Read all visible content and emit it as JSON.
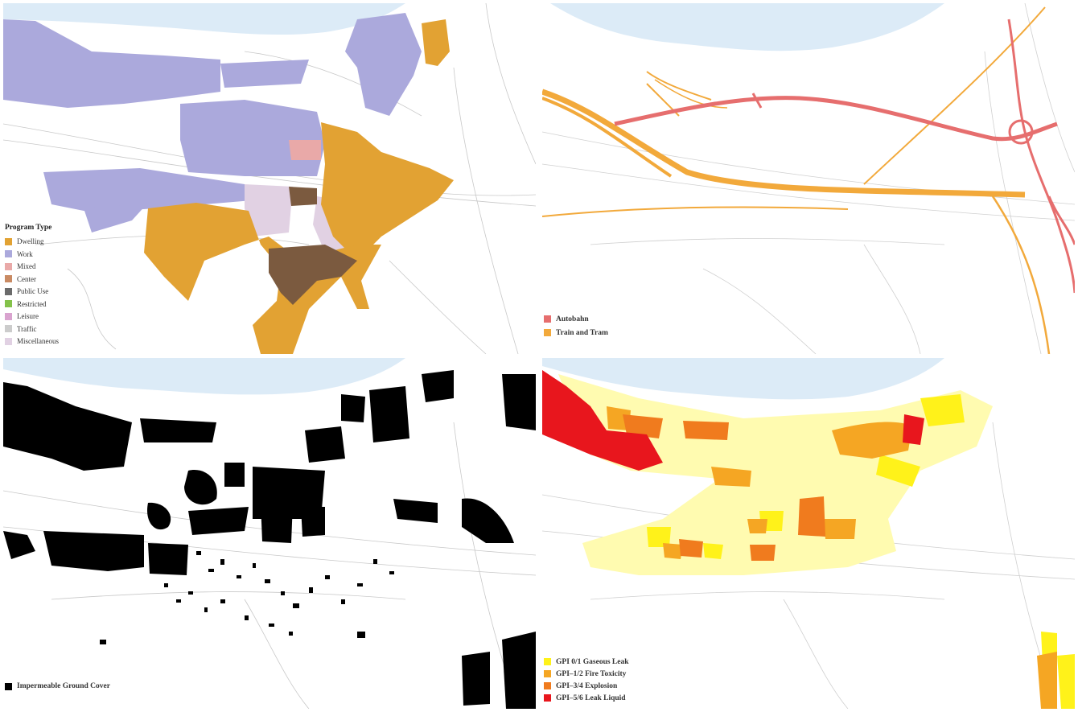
{
  "colors": {
    "water": "#dcebf7",
    "street": "#c8c8c8",
    "dwelling": "#e2a233",
    "work": "#aba9dc",
    "mixed": "#e9a9a8",
    "center": "#c98a63",
    "public_use": "#6b6b6b",
    "restricted": "#84c24a",
    "leisure": "#d9a3cf",
    "traffic": "#cccccc",
    "miscellaneous": "#e1d1e3",
    "autobahn": "#e66e6e",
    "train_tram": "#f2a93b",
    "impermeable": "#000000",
    "gpi_0_1": "#fff21a",
    "gpi_1_2": "#f5a623",
    "gpi_3_4": "#f07b1e",
    "gpi_5_6": "#e8161d"
  },
  "panels": {
    "program_type": {
      "legend_title": "Program Type",
      "items": [
        {
          "label": "Dwelling",
          "color": "#e2a233"
        },
        {
          "label": "Work",
          "color": "#aba9dc"
        },
        {
          "label": "Mixed",
          "color": "#e9a9a8"
        },
        {
          "label": "Center",
          "color": "#c98a63"
        },
        {
          "label": "Public Use",
          "color": "#6b6b6b"
        },
        {
          "label": "Restricted",
          "color": "#84c24a"
        },
        {
          "label": "Leisure",
          "color": "#d9a3cf"
        },
        {
          "label": "Traffic",
          "color": "#cccccc"
        },
        {
          "label": "Miscellaneous",
          "color": "#e1d1e3"
        }
      ]
    },
    "transport": {
      "items": [
        {
          "label": "Autobahn",
          "color": "#e66e6e"
        },
        {
          "label": "Train and Tram",
          "color": "#f2a93b"
        }
      ]
    },
    "ground_cover": {
      "items": [
        {
          "label": "Impermeable Ground Cover",
          "color": "#000000"
        }
      ]
    },
    "gpi": {
      "items": [
        {
          "label": "GPI 0/1 Gaseous Leak",
          "color": "#fff21a"
        },
        {
          "label": "GPI–1/2 Fire Toxicity",
          "color": "#f5a623"
        },
        {
          "label": "GPI–3/4 Explosion",
          "color": "#f07b1e"
        },
        {
          "label": "GPI–5/6 Leak Liquid",
          "color": "#e8161d"
        }
      ]
    }
  }
}
